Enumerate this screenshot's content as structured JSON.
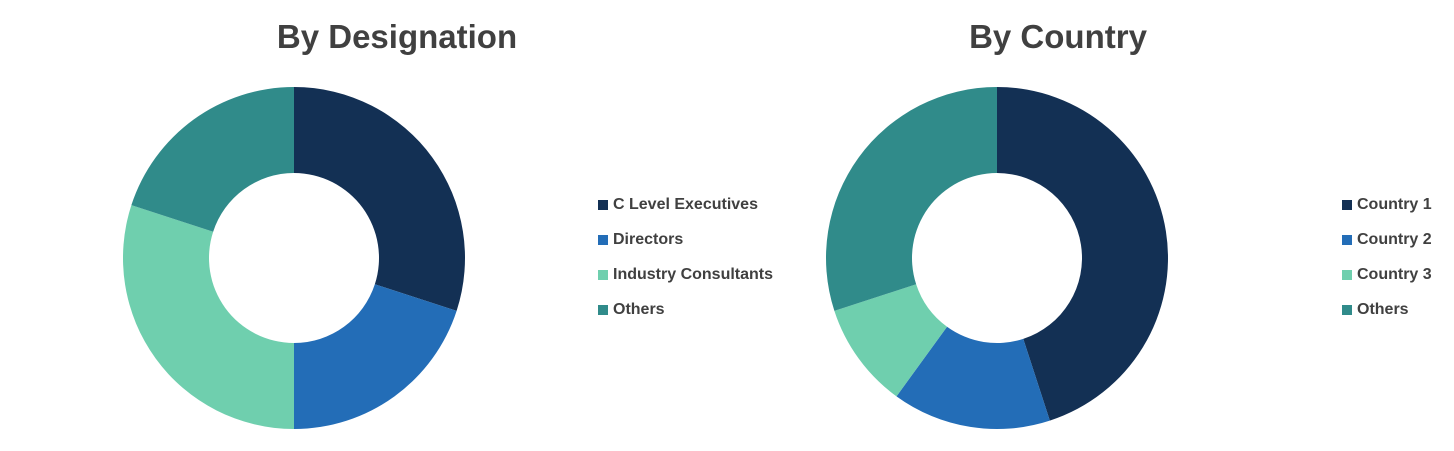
{
  "chart_data": [
    {
      "type": "pie",
      "variant": "donut",
      "title": "By Designation",
      "categories": [
        "C Level Executives",
        "Directors",
        "Industry Consultants",
        "Others"
      ],
      "values": [
        30,
        20,
        30,
        20
      ],
      "colors": [
        "#133054",
        "#236DB7",
        "#6FCFAE",
        "#308B8A"
      ],
      "legend_position": "right"
    },
    {
      "type": "pie",
      "variant": "donut",
      "title": "By Country",
      "categories": [
        "Country 1",
        "Country 2",
        "Country 3",
        "Others"
      ],
      "values": [
        45,
        15,
        10,
        30
      ],
      "colors": [
        "#133054",
        "#236DB7",
        "#6FCFAE",
        "#308B8A"
      ],
      "legend_position": "right"
    }
  ]
}
